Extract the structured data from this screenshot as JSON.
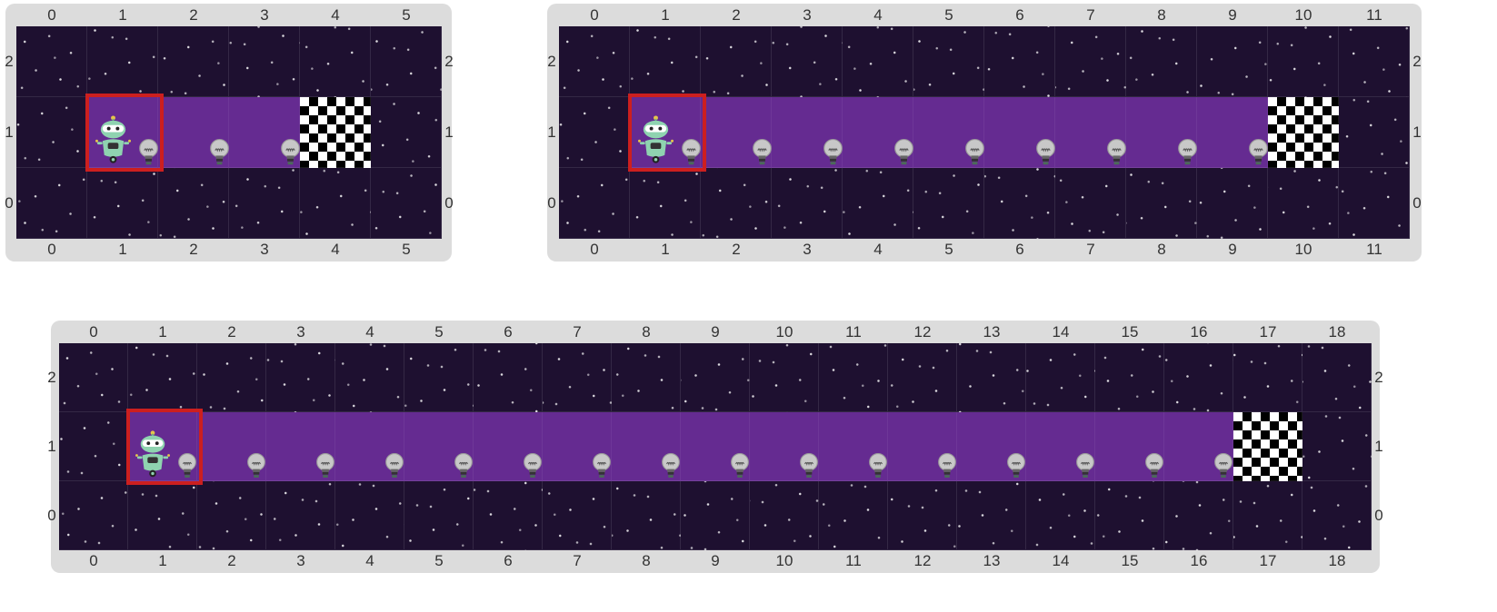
{
  "colors": {
    "board_frame": "#dcdcdc",
    "space": "#1e1030",
    "path": "#652b91",
    "highlight": "#cc1f1f",
    "robot": "#8fd3b0"
  },
  "icons": {
    "avatar": "robot-icon",
    "item": "lightbulb-icon",
    "goal": "checkered-flag-tile"
  },
  "boards": [
    {
      "columns": [
        "0",
        "1",
        "2",
        "3",
        "4",
        "5"
      ],
      "rows": [
        "2",
        "1",
        "0"
      ],
      "path_row": 1,
      "path_start_col": 1,
      "path_end_col": 3,
      "goal_col": 4,
      "robot_col": 1,
      "bulb_cols": [
        1,
        2,
        3
      ]
    },
    {
      "columns": [
        "0",
        "1",
        "2",
        "3",
        "4",
        "5",
        "6",
        "7",
        "8",
        "9",
        "10",
        "11"
      ],
      "rows": [
        "2",
        "1",
        "0"
      ],
      "path_row": 1,
      "path_start_col": 1,
      "path_end_col": 9,
      "goal_col": 10,
      "robot_col": 1,
      "bulb_cols": [
        1,
        2,
        3,
        4,
        5,
        6,
        7,
        8,
        9
      ]
    },
    {
      "columns": [
        "0",
        "1",
        "2",
        "3",
        "4",
        "5",
        "6",
        "7",
        "8",
        "9",
        "10",
        "11",
        "12",
        "13",
        "14",
        "15",
        "16",
        "17",
        "18"
      ],
      "rows": [
        "2",
        "1",
        "0"
      ],
      "path_row": 1,
      "path_start_col": 1,
      "path_end_col": 16,
      "goal_col": 17,
      "robot_col": 1,
      "bulb_cols": [
        1,
        2,
        3,
        4,
        5,
        6,
        7,
        8,
        9,
        10,
        11,
        12,
        13,
        14,
        15,
        16
      ]
    }
  ]
}
